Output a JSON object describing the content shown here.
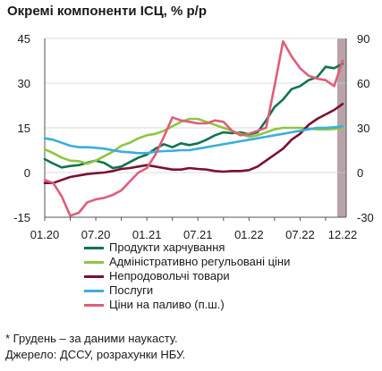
{
  "title": "Окремі компоненти ІСЦ, % р/р",
  "notes": {
    "footnote": "* Грудень – за даними наукасту.",
    "source": "Джерело: ДССУ, розрахунки НБУ."
  },
  "chart_data": {
    "type": "line",
    "title": "Окремі компоненти ІСЦ, % р/р",
    "x_ticks": [
      "01.20",
      "07.20",
      "01.21",
      "07.21",
      "01.22",
      "07.22",
      "12.22"
    ],
    "y_left": {
      "min": -15,
      "max": 45,
      "ticks": [
        "-15",
        "0",
        "15",
        "30",
        "45"
      ]
    },
    "y_right": {
      "min": -30,
      "max": 90,
      "ticks": [
        "-30",
        "0",
        "30",
        "60",
        "90"
      ]
    },
    "shaded_period": {
      "from": "12.22",
      "to": "12.22"
    },
    "legend_position": "bottom",
    "series": [
      {
        "name": "Продукти харчування",
        "axis": "left",
        "color": "#12744a",
        "points": [
          [
            "01.20",
            4.5
          ],
          [
            "02.20",
            3.0
          ],
          [
            "03.20",
            1.7
          ],
          [
            "04.20",
            2.2
          ],
          [
            "05.20",
            2.5
          ],
          [
            "06.20",
            3.3
          ],
          [
            "07.20",
            4.0
          ],
          [
            "08.20",
            3.2
          ],
          [
            "09.20",
            1.5
          ],
          [
            "10.20",
            2.0
          ],
          [
            "11.20",
            3.5
          ],
          [
            "12.20",
            5.0
          ],
          [
            "01.21",
            6.0
          ],
          [
            "02.21",
            8.0
          ],
          [
            "03.21",
            9.5
          ],
          [
            "04.21",
            8.5
          ],
          [
            "05.21",
            9.8
          ],
          [
            "06.21",
            9.2
          ],
          [
            "07.21",
            9.8
          ],
          [
            "08.21",
            11.0
          ],
          [
            "09.21",
            12.5
          ],
          [
            "10.21",
            13.5
          ],
          [
            "11.21",
            13.2
          ],
          [
            "12.21",
            13.5
          ],
          [
            "01.22",
            12.8
          ],
          [
            "02.22",
            13.5
          ],
          [
            "03.22",
            17.5
          ],
          [
            "04.22",
            22.0
          ],
          [
            "05.22",
            24.5
          ],
          [
            "06.22",
            28.0
          ],
          [
            "07.22",
            29.0
          ],
          [
            "08.22",
            31.0
          ],
          [
            "09.22",
            32.0
          ],
          [
            "10.22",
            35.5
          ],
          [
            "11.22",
            35.0
          ],
          [
            "12.22",
            36.5
          ]
        ]
      },
      {
        "name": "Адміністративно регульовані ціни",
        "axis": "left",
        "color": "#8ec63f",
        "points": [
          [
            "01.20",
            7.8
          ],
          [
            "02.20",
            6.5
          ],
          [
            "03.20",
            5.0
          ],
          [
            "04.20",
            4.0
          ],
          [
            "05.20",
            3.8
          ],
          [
            "06.20",
            3.0
          ],
          [
            "07.20",
            4.0
          ],
          [
            "08.20",
            5.5
          ],
          [
            "09.20",
            7.0
          ],
          [
            "10.20",
            9.0
          ],
          [
            "11.20",
            10.0
          ],
          [
            "12.20",
            11.5
          ],
          [
            "01.21",
            12.5
          ],
          [
            "02.21",
            13.0
          ],
          [
            "03.21",
            14.0
          ],
          [
            "04.21",
            15.5
          ],
          [
            "05.21",
            17.0
          ],
          [
            "06.21",
            18.0
          ],
          [
            "07.21",
            18.0
          ],
          [
            "08.21",
            17.0
          ],
          [
            "09.21",
            16.0
          ],
          [
            "10.21",
            15.0
          ],
          [
            "11.21",
            14.0
          ],
          [
            "12.21",
            13.0
          ],
          [
            "01.22",
            12.0
          ],
          [
            "02.22",
            12.5
          ],
          [
            "03.22",
            13.5
          ],
          [
            "04.22",
            14.5
          ],
          [
            "05.22",
            15.0
          ],
          [
            "06.22",
            15.0
          ],
          [
            "07.22",
            15.0
          ],
          [
            "08.22",
            14.8
          ],
          [
            "09.22",
            14.5
          ],
          [
            "10.22",
            14.5
          ],
          [
            "11.22",
            14.6
          ],
          [
            "12.22",
            15.0
          ]
        ]
      },
      {
        "name": "Непродовольчі товари",
        "axis": "left",
        "color": "#7a1034",
        "points": [
          [
            "01.20",
            -3.5
          ],
          [
            "02.20",
            -3.5
          ],
          [
            "03.20",
            -2.5
          ],
          [
            "04.20",
            -1.5
          ],
          [
            "05.20",
            -1.0
          ],
          [
            "06.20",
            -0.5
          ],
          [
            "07.20",
            -0.2
          ],
          [
            "08.20",
            0.0
          ],
          [
            "09.20",
            0.5
          ],
          [
            "10.20",
            1.2
          ],
          [
            "11.20",
            1.5
          ],
          [
            "12.20",
            2.0
          ],
          [
            "01.21",
            2.5
          ],
          [
            "02.21",
            2.0
          ],
          [
            "03.21",
            1.5
          ],
          [
            "04.21",
            1.0
          ],
          [
            "05.21",
            1.0
          ],
          [
            "06.21",
            1.5
          ],
          [
            "07.21",
            1.2
          ],
          [
            "08.21",
            1.0
          ],
          [
            "09.21",
            0.5
          ],
          [
            "10.21",
            0.3
          ],
          [
            "11.21",
            0.5
          ],
          [
            "12.21",
            0.5
          ],
          [
            "01.22",
            0.8
          ],
          [
            "02.22",
            2.0
          ],
          [
            "03.22",
            4.0
          ],
          [
            "04.22",
            6.0
          ],
          [
            "05.22",
            8.0
          ],
          [
            "06.22",
            11.0
          ],
          [
            "07.22",
            13.0
          ],
          [
            "08.22",
            16.0
          ],
          [
            "09.22",
            18.0
          ],
          [
            "10.22",
            19.5
          ],
          [
            "11.22",
            21.0
          ],
          [
            "12.22",
            23.0
          ]
        ]
      },
      {
        "name": "Послуги",
        "axis": "left",
        "color": "#3aaee0",
        "points": [
          [
            "01.20",
            11.5
          ],
          [
            "02.20",
            11.0
          ],
          [
            "03.20",
            10.0
          ],
          [
            "04.20",
            9.0
          ],
          [
            "05.20",
            8.5
          ],
          [
            "06.20",
            8.5
          ],
          [
            "07.20",
            8.3
          ],
          [
            "08.20",
            8.0
          ],
          [
            "09.20",
            7.5
          ],
          [
            "10.20",
            7.0
          ],
          [
            "11.20",
            6.8
          ],
          [
            "12.20",
            6.5
          ],
          [
            "01.21",
            6.5
          ],
          [
            "02.21",
            7.0
          ],
          [
            "03.21",
            7.2
          ],
          [
            "04.21",
            7.3
          ],
          [
            "05.21",
            7.5
          ],
          [
            "06.21",
            7.5
          ],
          [
            "07.21",
            8.0
          ],
          [
            "08.21",
            8.5
          ],
          [
            "09.21",
            9.0
          ],
          [
            "10.21",
            9.5
          ],
          [
            "11.21",
            10.0
          ],
          [
            "12.21",
            10.5
          ],
          [
            "01.22",
            11.0
          ],
          [
            "02.22",
            11.5
          ],
          [
            "03.22",
            12.0
          ],
          [
            "04.22",
            12.5
          ],
          [
            "05.22",
            13.0
          ],
          [
            "06.22",
            13.5
          ],
          [
            "07.22",
            14.0
          ],
          [
            "08.22",
            14.5
          ],
          [
            "09.22",
            15.0
          ],
          [
            "10.22",
            15.0
          ],
          [
            "11.22",
            15.2
          ],
          [
            "12.22",
            15.5
          ]
        ]
      },
      {
        "name": "Ціни на паливо (п.ш.)",
        "axis": "right",
        "color": "#e05d7a",
        "points": [
          [
            "01.20",
            -5.0
          ],
          [
            "02.20",
            -7.0
          ],
          [
            "03.20",
            -16.0
          ],
          [
            "04.20",
            -29.0
          ],
          [
            "05.20",
            -27.0
          ],
          [
            "06.20",
            -20.0
          ],
          [
            "07.20",
            -18.0
          ],
          [
            "08.20",
            -17.0
          ],
          [
            "09.20",
            -15.0
          ],
          [
            "10.20",
            -12.0
          ],
          [
            "11.20",
            -6.0
          ],
          [
            "12.20",
            0.0
          ],
          [
            "01.21",
            3.0
          ],
          [
            "02.21",
            12.0
          ],
          [
            "03.21",
            24.0
          ],
          [
            "04.21",
            37.0
          ],
          [
            "05.21",
            35.0
          ],
          [
            "06.21",
            34.0
          ],
          [
            "07.21",
            33.0
          ],
          [
            "08.21",
            33.0
          ],
          [
            "09.21",
            35.0
          ],
          [
            "10.21",
            34.0
          ],
          [
            "11.21",
            28.0
          ],
          [
            "12.21",
            25.0
          ],
          [
            "01.22",
            26.0
          ],
          [
            "02.22",
            28.0
          ],
          [
            "03.22",
            30.0
          ],
          [
            "04.22",
            58.0
          ],
          [
            "05.22",
            88.0
          ],
          [
            "06.22",
            78.0
          ],
          [
            "07.22",
            70.0
          ],
          [
            "08.22",
            65.0
          ],
          [
            "09.22",
            63.0
          ],
          [
            "10.22",
            62.0
          ],
          [
            "11.22",
            58.0
          ],
          [
            "12.22",
            75.0
          ]
        ]
      }
    ]
  }
}
